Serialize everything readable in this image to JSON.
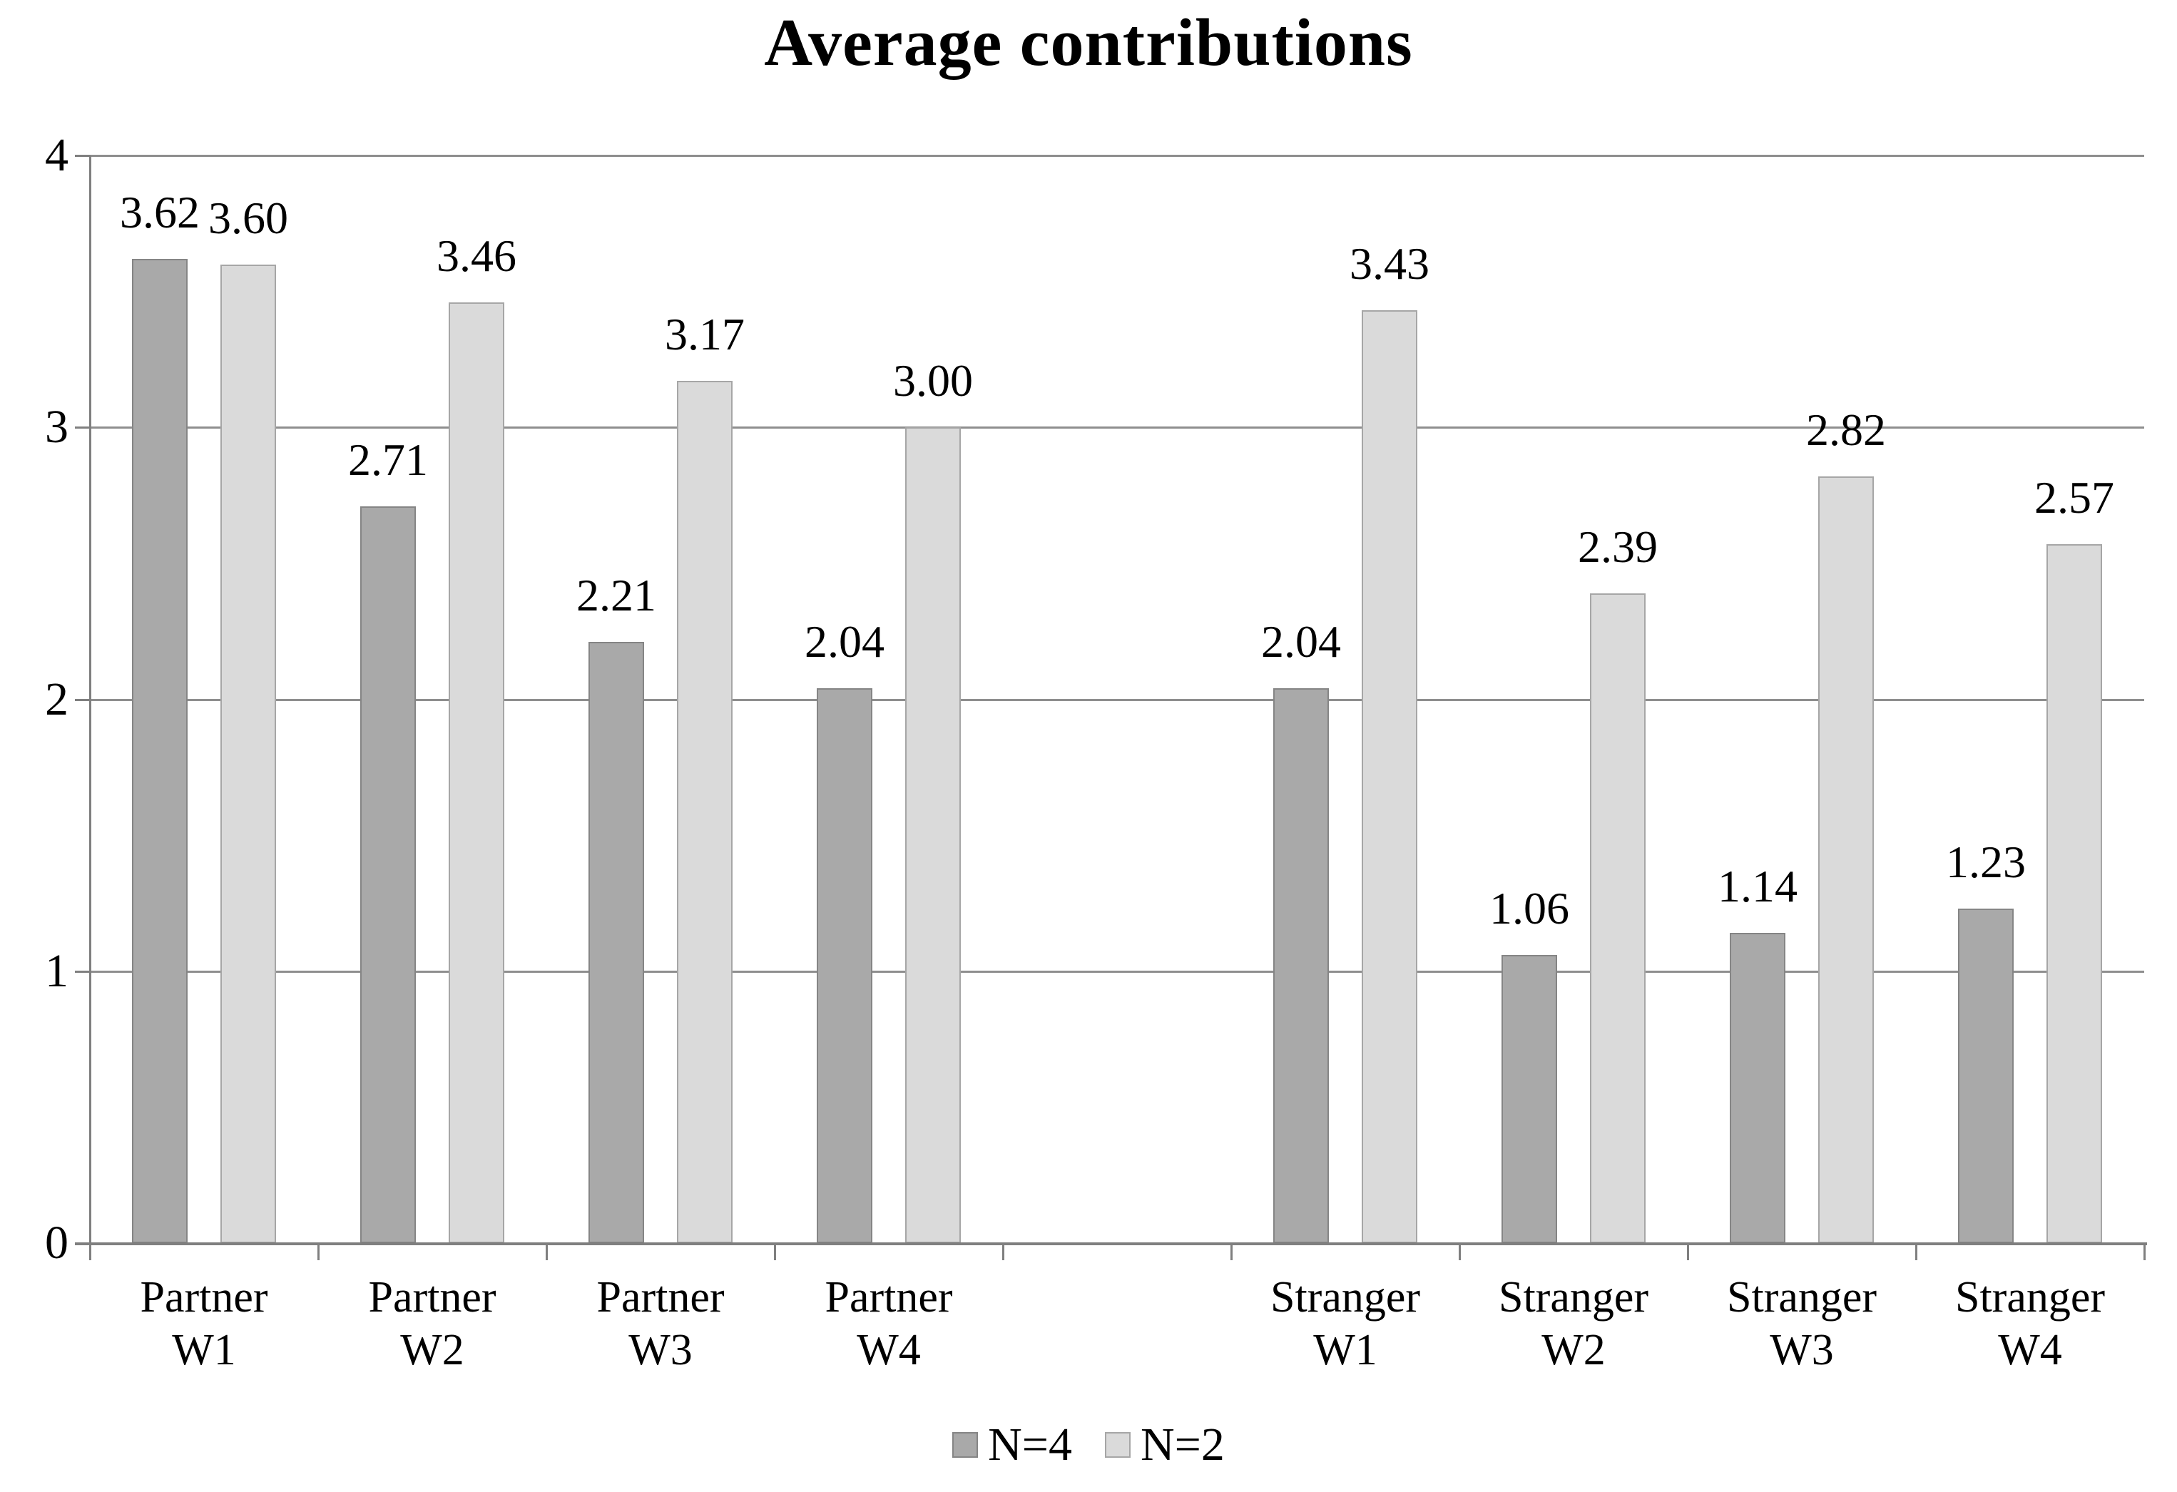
{
  "chart_data": {
    "type": "bar",
    "title": "Average contributions",
    "xlabel": "",
    "ylabel": "",
    "ylim": [
      0,
      4
    ],
    "grid": true,
    "legend_position": "bottom",
    "background_color": "#ffffff",
    "text_color": "#000000",
    "gridline_color": "#8e8e8e",
    "axis_color": "#7f7f7f",
    "yticks": [
      {
        "label": "4",
        "value": 4
      },
      {
        "label": "3",
        "value": 3
      },
      {
        "label": "2",
        "value": 2
      },
      {
        "label": "1",
        "value": 1
      },
      {
        "label": "0",
        "value": 0
      }
    ],
    "categories": [
      {
        "line1": "Partner",
        "line2": "W1"
      },
      {
        "line1": "Partner",
        "line2": "W2"
      },
      {
        "line1": "Partner",
        "line2": "W3"
      },
      {
        "line1": "Partner",
        "line2": "W4"
      },
      {
        "line1": "Stranger",
        "line2": "W1"
      },
      {
        "line1": "Stranger",
        "line2": "W2"
      },
      {
        "line1": "Stranger",
        "line2": "W3"
      },
      {
        "line1": "Stranger",
        "line2": "W4"
      }
    ],
    "gap_after_category_index": 3,
    "series": [
      {
        "name": "N=4",
        "fill_color": "#a9a9a9",
        "border_color": "#858585",
        "values": [
          3.62,
          2.71,
          2.21,
          2.04,
          2.04,
          1.06,
          1.14,
          1.23
        ],
        "value_labels": [
          "3.62",
          "2.71",
          "2.21",
          "2.04",
          "2.04",
          "1.06",
          "1.14",
          "1.23"
        ]
      },
      {
        "name": "N=2",
        "fill_color": "#dadada",
        "border_color": "#a6a6a6",
        "values": [
          3.6,
          3.46,
          3.17,
          3.0,
          3.43,
          2.39,
          2.82,
          2.57
        ],
        "value_labels": [
          "3.60",
          "3.46",
          "3.17",
          "3.00",
          "3.43",
          "2.39",
          "2.82",
          "2.57"
        ]
      }
    ]
  }
}
